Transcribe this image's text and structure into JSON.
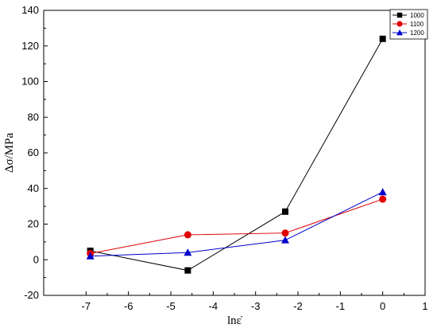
{
  "chart_data": {
    "type": "line",
    "xlabel": "lnε̇",
    "ylabel": "Δσ/MPa",
    "xlim": [
      -8,
      1
    ],
    "ylim": [
      -20,
      140
    ],
    "x_ticks": [
      -7,
      -6,
      -5,
      -4,
      -3,
      -2,
      -1,
      0,
      1
    ],
    "y_ticks": [
      -20,
      0,
      20,
      40,
      60,
      80,
      100,
      120,
      140
    ],
    "grid": false,
    "legend_position": "top-right",
    "x": [
      -6.9,
      -4.6,
      -2.3,
      0
    ],
    "series": [
      {
        "name": "1000",
        "color": "#000000",
        "marker": "square",
        "values": [
          5,
          -6,
          27,
          124
        ]
      },
      {
        "name": "1100",
        "color": "#e00000",
        "marker": "circle",
        "values": [
          3.5,
          14,
          15,
          34
        ]
      },
      {
        "name": "1200",
        "color": "#0000cc",
        "marker": "triangle",
        "values": [
          2,
          4,
          11,
          38
        ]
      }
    ]
  }
}
